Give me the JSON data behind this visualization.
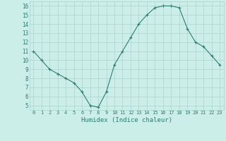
{
  "x": [
    0,
    1,
    2,
    3,
    4,
    5,
    6,
    7,
    8,
    9,
    10,
    11,
    12,
    13,
    14,
    15,
    16,
    17,
    18,
    19,
    20,
    21,
    22,
    23
  ],
  "y": [
    11,
    10,
    9,
    8.5,
    8,
    7.5,
    6.5,
    5,
    4.8,
    6.5,
    9.5,
    11,
    12.5,
    14,
    15,
    15.8,
    16,
    16,
    15.8,
    13.5,
    12,
    11.5,
    10.5,
    9.5
  ],
  "line_color": "#2e7d6e",
  "marker": "+",
  "marker_size": 3,
  "bg_color": "#cceee8",
  "grid_color": "#aad4cc",
  "xlabel": "Humidex (Indice chaleur)",
  "xlim": [
    -0.5,
    23.5
  ],
  "ylim": [
    4.5,
    16.5
  ],
  "yticks": [
    5,
    6,
    7,
    8,
    9,
    10,
    11,
    12,
    13,
    14,
    15,
    16
  ],
  "xticks": [
    0,
    1,
    2,
    3,
    4,
    5,
    6,
    7,
    8,
    9,
    10,
    11,
    12,
    13,
    14,
    15,
    16,
    17,
    18,
    19,
    20,
    21,
    22,
    23
  ]
}
